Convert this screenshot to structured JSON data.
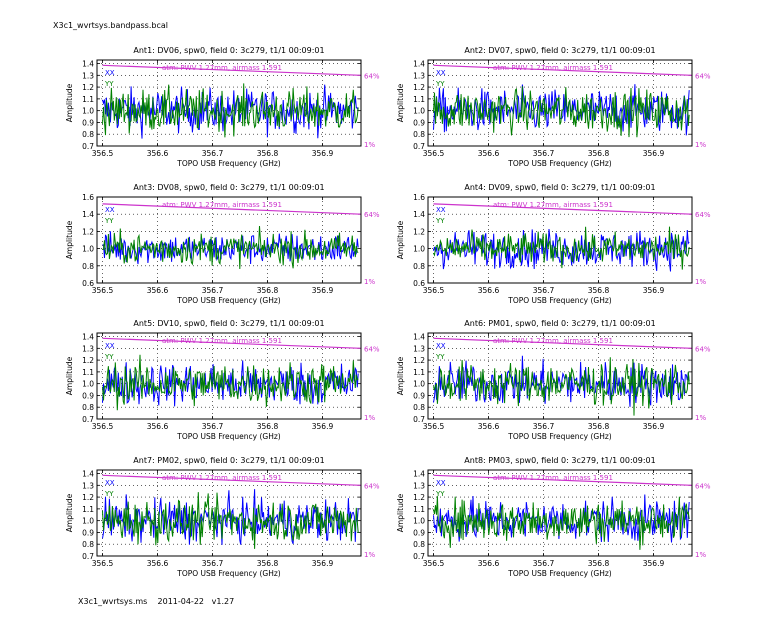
{
  "header": {
    "file_title": "X3c1_wvrtsys.bandpass.bcal"
  },
  "footer": {
    "text": "X3c1_wvrtsys.ms    2011-04-22   v1.27"
  },
  "colors": {
    "xx": "#0000ff",
    "yy": "#008000",
    "atm": "#cc33cc",
    "grid": "#000000"
  },
  "common": {
    "xlabel": "TOPO USB Frequency (GHz)",
    "ylabel": "Amplitude",
    "x_ticks": [
      "356.5",
      "356.6",
      "356.7",
      "356.8",
      "356.9"
    ],
    "x_range": [
      356.49,
      356.97
    ],
    "legend": {
      "xx": "XX",
      "yy": "YY"
    },
    "atm_label": "atm: PWV 1.27mm, airmass 1.591",
    "atm_right_top": "64%",
    "atm_right_bottom": "1%"
  },
  "chart_data": [
    {
      "type": "line",
      "title": "Ant1: DV06,  spw0,  field 0: 3c279,  t1/1  00:09:01",
      "ylim": [
        0.7,
        1.43
      ],
      "y_ticks": [
        "0.7",
        "0.8",
        "0.9",
        "1.0",
        "1.1",
        "1.2",
        "1.3",
        "1.4"
      ],
      "series": [
        {
          "name": "XX",
          "mean": 1.0,
          "spread": 0.1
        },
        {
          "name": "YY",
          "mean": 1.0,
          "spread": 0.1
        }
      ],
      "atm_line": {
        "start": 1.385,
        "end": 1.3
      }
    },
    {
      "type": "line",
      "title": "Ant2: DV07,  spw0,  field 0: 3c279,  t1/1  00:09:01",
      "ylim": [
        0.7,
        1.43
      ],
      "y_ticks": [
        "0.7",
        "0.8",
        "0.9",
        "1.0",
        "1.1",
        "1.2",
        "1.3",
        "1.4"
      ],
      "series": [
        {
          "name": "XX",
          "mean": 1.0,
          "spread": 0.1
        },
        {
          "name": "YY",
          "mean": 1.0,
          "spread": 0.1
        }
      ],
      "atm_line": {
        "start": 1.385,
        "end": 1.3
      }
    },
    {
      "type": "line",
      "title": "Ant3: DV08,  spw0,  field 0: 3c279,  t1/1  00:09:01",
      "ylim": [
        0.6,
        1.6
      ],
      "y_ticks": [
        "0.6",
        "0.8",
        "1.0",
        "1.2",
        "1.4",
        "1.6"
      ],
      "series": [
        {
          "name": "XX",
          "mean": 1.0,
          "spread": 0.1
        },
        {
          "name": "YY",
          "mean": 1.0,
          "spread": 0.1
        }
      ],
      "atm_line": {
        "start": 1.52,
        "end": 1.4
      }
    },
    {
      "type": "line",
      "title": "Ant4: DV09,  spw0,  field 0: 3c279,  t1/1  00:09:01",
      "ylim": [
        0.6,
        1.6
      ],
      "y_ticks": [
        "0.6",
        "0.8",
        "1.0",
        "1.2",
        "1.4",
        "1.6"
      ],
      "series": [
        {
          "name": "XX",
          "mean": 1.0,
          "spread": 0.12
        },
        {
          "name": "YY",
          "mean": 1.0,
          "spread": 0.1
        }
      ],
      "atm_line": {
        "start": 1.52,
        "end": 1.4
      }
    },
    {
      "type": "line",
      "title": "Ant5: DV10,  spw0,  field 0: 3c279,  t1/1  00:09:01",
      "ylim": [
        0.7,
        1.43
      ],
      "y_ticks": [
        "0.7",
        "0.8",
        "0.9",
        "1.0",
        "1.1",
        "1.2",
        "1.3",
        "1.4"
      ],
      "series": [
        {
          "name": "XX",
          "mean": 1.0,
          "spread": 0.1
        },
        {
          "name": "YY",
          "mean": 1.0,
          "spread": 0.1
        }
      ],
      "atm_line": {
        "start": 1.385,
        "end": 1.3
      }
    },
    {
      "type": "line",
      "title": "Ant6: PM01,  spw0,  field 0: 3c279,  t1/1  00:09:01",
      "ylim": [
        0.7,
        1.43
      ],
      "y_ticks": [
        "0.7",
        "0.8",
        "0.9",
        "1.0",
        "1.1",
        "1.2",
        "1.3",
        "1.4"
      ],
      "series": [
        {
          "name": "XX",
          "mean": 1.0,
          "spread": 0.1
        },
        {
          "name": "YY",
          "mean": 1.0,
          "spread": 0.1
        }
      ],
      "atm_line": {
        "start": 1.385,
        "end": 1.3
      }
    },
    {
      "type": "line",
      "title": "Ant7: PM02,  spw0,  field 0: 3c279,  t1/1  00:09:01",
      "ylim": [
        0.7,
        1.43
      ],
      "y_ticks": [
        "0.7",
        "0.8",
        "0.9",
        "1.0",
        "1.1",
        "1.2",
        "1.3",
        "1.4"
      ],
      "series": [
        {
          "name": "XX",
          "mean": 1.0,
          "spread": 0.1
        },
        {
          "name": "YY",
          "mean": 1.0,
          "spread": 0.1
        }
      ],
      "atm_line": {
        "start": 1.385,
        "end": 1.3
      }
    },
    {
      "type": "line",
      "title": "Ant8: PM03,  spw0,  field 0: 3c279,  t1/1  00:09:01",
      "ylim": [
        0.7,
        1.43
      ],
      "y_ticks": [
        "0.7",
        "0.8",
        "0.9",
        "1.0",
        "1.1",
        "1.2",
        "1.3",
        "1.4"
      ],
      "series": [
        {
          "name": "XX",
          "mean": 1.0,
          "spread": 0.1
        },
        {
          "name": "YY",
          "mean": 1.0,
          "spread": 0.1
        }
      ],
      "atm_line": {
        "start": 1.385,
        "end": 1.3
      }
    }
  ]
}
